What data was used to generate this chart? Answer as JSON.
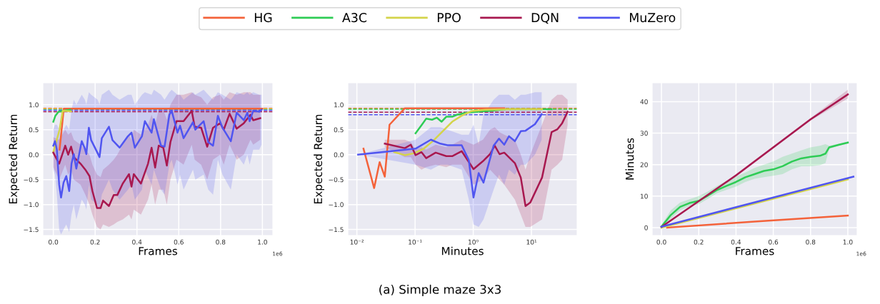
{
  "chart_data": [
    {
      "type": "line",
      "xlabel": "Frames",
      "ylabel": "Expected Return",
      "xlim": [
        -0.05,
        1.05
      ],
      "ylim": [
        -1.62,
        1.44
      ],
      "xticks": [
        {
          "value": 0,
          "label": "0.0"
        },
        0.2,
        0.4,
        0.6,
        0.8,
        {
          "value": 1,
          "label": "1.0"
        }
      ],
      "yticks": [
        {
          "value": -1.5,
          "label": "−1.5"
        },
        {
          "value": -1.0,
          "label": "−1.0"
        },
        {
          "value": -0.5,
          "label": "−0.5"
        },
        {
          "value": 0,
          "label": "0.0"
        },
        0.5,
        {
          "value": 1,
          "label": "1.0"
        }
      ],
      "grid": true,
      "legend": "top",
      "annotations": [
        "1e6"
      ],
      "ref_lines": [
        {
          "axis": "y",
          "value": 0.93,
          "color": "#f4623a",
          "line_style": "dashed"
        },
        {
          "axis": "y",
          "value": 0.91,
          "color": "#2ecc55",
          "line_style": "dashed"
        },
        {
          "axis": "y",
          "value": 0.92,
          "color": "#d4d44a",
          "line_style": "dashed"
        },
        {
          "axis": "y",
          "value": 0.86,
          "color": "#a8184f",
          "line_style": "dashed"
        },
        {
          "axis": "y",
          "value": 0.89,
          "color": "#5055f0",
          "line_style": "dashed"
        }
      ],
      "series": [
        {
          "name": "HG",
          "color": "#f4623a",
          "x": [
            0.03,
            0.05,
            1.0
          ],
          "values": [
            0.1,
            0.92,
            0.92
          ]
        },
        {
          "name": "A3C",
          "color": "#2ecc55",
          "x": [
            0,
            0.01,
            0.025,
            0.05,
            0.08
          ],
          "values": [
            0.66,
            0.78,
            0.86,
            0.88,
            0.9
          ]
        },
        {
          "name": "PPO",
          "color": "#d4d44a",
          "x": [
            0,
            0.03,
            0.045,
            0.085
          ],
          "values": [
            0.05,
            0.5,
            0.88,
            0.87
          ]
        },
        {
          "name": "DQN",
          "color": "#a8184f",
          "x": [
            0,
            0.028,
            0.057,
            0.071,
            0.085,
            0.098,
            0.13,
            0.153,
            0.173,
            0.187,
            0.209,
            0.226,
            0.238,
            0.266,
            0.289,
            0.306,
            0.332,
            0.362,
            0.374,
            0.385,
            0.419,
            0.453,
            0.47,
            0.487,
            0.504,
            0.526,
            0.543,
            0.56,
            0.589,
            0.623,
            0.662,
            0.676,
            0.707,
            0.736,
            0.764,
            0.798,
            0.815,
            0.843,
            0.877,
            0.911,
            0.943,
            0.956,
            0.99
          ],
          "values": [
            0.04,
            -0.18,
            0.18,
            0,
            0.16,
            -0.05,
            -0.18,
            -0.3,
            -0.43,
            -0.73,
            -1.07,
            -1.07,
            -0.92,
            -1.03,
            -0.81,
            -0.81,
            -0.58,
            -0.39,
            -0.64,
            -0.39,
            -0.58,
            -0.18,
            0.14,
            -0.26,
            0.18,
            0.14,
            -0.22,
            0.25,
            0.67,
            0.67,
            0.88,
            0.56,
            0.54,
            0.16,
            0.54,
            0.63,
            0.5,
            0.82,
            0.52,
            0.63,
            0.8,
            0.69,
            0.73
          ],
          "upper": [
            0.35,
            0.3,
            0.5,
            0.4,
            0.45,
            0.3,
            0.2,
            0.1,
            0,
            -0.2,
            -0.4,
            -0.45,
            -0.3,
            -0.2,
            -0.1,
            0,
            0.2,
            0.4,
            0.3,
            0.5,
            0.4,
            0.6,
            0.8,
            0.6,
            0.9,
            0.9,
            0.7,
            1.0,
            1.2,
            1.2,
            1.25,
            1.2,
            1.15,
            1.0,
            1.15,
            1.2,
            1.1,
            1.25,
            1.2,
            1.25,
            1.25,
            1.2,
            1.2
          ],
          "lower": [
            -0.25,
            -0.5,
            -0.2,
            -0.4,
            -0.3,
            -0.5,
            -0.6,
            -0.8,
            -1.0,
            -1.2,
            -1.45,
            -1.5,
            -1.4,
            -1.45,
            -1.4,
            -1.35,
            -1.3,
            -1.2,
            -1.3,
            -1.1,
            -1.2,
            -0.9,
            -0.6,
            -1.0,
            -0.7,
            -0.7,
            -1.0,
            -0.5,
            -0.1,
            -0.2,
            0.2,
            -0.1,
            -0.2,
            -0.5,
            -0.1,
            0,
            -0.2,
            0.2,
            -0.1,
            0,
            0.3,
            0.2,
            0.3
          ]
        },
        {
          "name": "MuZero",
          "color": "#5055f0",
          "x": [
            0,
            0.008,
            0.017,
            0.028,
            0.037,
            0.049,
            0.062,
            0.076,
            0.087,
            0.098,
            0.11,
            0.136,
            0.151,
            0.158,
            0.17,
            0.181,
            0.212,
            0.221,
            0.232,
            0.266,
            0.283,
            0.317,
            0.357,
            0.374,
            0.39,
            0.424,
            0.438,
            0.47,
            0.481,
            0.515,
            0.532,
            0.555,
            0.566,
            0.594,
            0.606,
            0.623,
            0.668,
            0.679,
            0.719,
            0.741,
            0.764,
            0.787,
            0.809,
            0.849,
            0.877,
            0.911,
            0.928,
            0.939,
            0.956,
            0.985,
            0.996
          ],
          "values": [
            0.18,
            0.27,
            0.1,
            -0.6,
            -0.86,
            -0.56,
            -0.43,
            -0.73,
            -0.18,
            0.01,
            -0.28,
            0.27,
            0.12,
            0.01,
            0.54,
            0.29,
            0.03,
            -0.05,
            0.33,
            0.56,
            0.29,
            0.14,
            0.37,
            0.44,
            0.14,
            0.37,
            0.67,
            0.44,
            0.71,
            0.18,
            0.16,
            0.8,
            0.88,
            0.44,
            0.58,
            0.33,
            0.65,
            0.5,
            0.67,
            0.25,
            0.18,
            0.78,
            0.54,
            0.27,
            0.84,
            0.69,
            0.84,
            0.67,
            0.88,
            0.86,
            0.9
          ],
          "upper": [
            0.5,
            0.6,
            0.6,
            0.5,
            0.4,
            0.5,
            0.6,
            0.5,
            0.9,
            1.1,
            1.0,
            1.2,
            1.1,
            1.0,
            1.25,
            1.2,
            1.1,
            1.0,
            1.2,
            1.3,
            1.2,
            1.1,
            1.2,
            1.2,
            1.0,
            1.2,
            1.25,
            1.2,
            1.3,
            1.2,
            1.1,
            1.25,
            1.3,
            1.2,
            1.2,
            1.1,
            1.25,
            1.2,
            1.3,
            1.2,
            1.1,
            1.25,
            1.2,
            1.1,
            1.25,
            1.2,
            1.25,
            1.2,
            1.25,
            1.2,
            1.2
          ],
          "lower": [
            -0.3,
            -0.4,
            -0.8,
            -1.5,
            -1.6,
            -1.5,
            -1.4,
            -1.55,
            -1.2,
            -1.0,
            -1.3,
            -0.9,
            -1.0,
            -1.1,
            -0.6,
            -0.9,
            -1.0,
            -1.1,
            -0.8,
            -0.5,
            -0.7,
            -0.9,
            -0.7,
            -0.6,
            -0.9,
            -0.7,
            -0.3,
            -0.6,
            -0.3,
            -0.7,
            -0.8,
            -0.2,
            -0.1,
            -0.6,
            -0.4,
            -0.7,
            -0.3,
            -0.5,
            -0.4,
            -0.7,
            -0.8,
            -0.1,
            -0.4,
            -0.7,
            0,
            -0.2,
            0,
            -0.2,
            0.1,
            0.1,
            0.2
          ]
        }
      ]
    },
    {
      "type": "line",
      "xlabel": "Minutes",
      "ylabel": "Expected Return",
      "log": "x",
      "xlim": [
        0.007,
        61
      ],
      "ylim": [
        -1.62,
        1.44
      ],
      "xticks": [
        {
          "value": 0.01,
          "label": "10⁻²"
        },
        {
          "value": 0.1,
          "label": "10⁻¹"
        },
        {
          "value": 1,
          "label": "10⁰"
        },
        {
          "value": 10,
          "label": "10¹"
        }
      ],
      "yticks": [
        {
          "value": -1.5,
          "label": "−1.5"
        },
        {
          "value": -1.0,
          "label": "−1.0"
        },
        {
          "value": -0.5,
          "label": "−0.5"
        },
        {
          "value": 0,
          "label": "0.0"
        },
        0.5,
        {
          "value": 1,
          "label": "1.0"
        }
      ],
      "grid": true,
      "annotations": [
        "(a) Simple maze 3x3"
      ],
      "ref_lines": [
        {
          "axis": "y",
          "value": 0.93,
          "color": "#f4623a",
          "line_style": "dashed"
        },
        {
          "axis": "y",
          "value": 0.92,
          "color": "#d4d44a",
          "line_style": "dashed"
        },
        {
          "axis": "y",
          "value": 0.91,
          "color": "#2ecc55",
          "line_style": "dashed"
        },
        {
          "axis": "y",
          "value": 0.85,
          "color": "#a8184f",
          "line_style": "dashed"
        },
        {
          "axis": "y",
          "value": 0.8,
          "color": "#5055f0",
          "line_style": "dashed"
        }
      ],
      "series": [
        {
          "color": "#f4623a",
          "x": [
            0.013,
            0.0198,
            0.0246,
            0.0302,
            0.0364,
            0.0668,
            3.41
          ],
          "values": [
            0.12,
            -0.67,
            -0.15,
            -0.44,
            0.6,
            0.93,
            0.93
          ]
        },
        {
          "color": "#2ecc55",
          "x": [
            0.102,
            0.129,
            0.155,
            0.196,
            0.237,
            0.285,
            0.344,
            0.435,
            0.525,
            0.762,
            1.22,
            1.94,
            3.74,
            12.6,
            22.2
          ],
          "values": [
            0.43,
            0.59,
            0.72,
            0.7,
            0.74,
            0.66,
            0.76,
            0.76,
            0.8,
            0.84,
            0.86,
            0.88,
            0.91,
            0.91,
            0.91
          ]
        },
        {
          "color": "#d4d44a",
          "x": [
            0.0438,
            0.0668,
            0.0973,
            0.141,
            0.206,
            0.299,
            0.435,
            0.632,
            0.919,
            1.61,
            4.95,
            15.2
          ],
          "values": [
            0.05,
            -0.01,
            0.03,
            0.12,
            0.28,
            0.47,
            0.66,
            0.78,
            0.87,
            0.9,
            0.91,
            0.91
          ]
        },
        {
          "color": "#a8184f",
          "x": [
            0.0302,
            0.0668,
            0.0845,
            0.102,
            0.129,
            0.155,
            0.226,
            0.344,
            0.435,
            0.632,
            1.01,
            1.47,
            1.94,
            2.34,
            2.83,
            3.41,
            5.19,
            6.56,
            7.91,
            9.55,
            15.2,
            22.2,
            28.0,
            33.7,
            41.9
          ],
          "values": [
            0.22,
            0.13,
            0.2,
            -0.01,
            0.05,
            -0.07,
            0.04,
            -0.03,
            -0.03,
            0.07,
            -0.29,
            -0.13,
            0.01,
            0.18,
            0.01,
            0.04,
            -0.17,
            -0.46,
            -1.03,
            -0.96,
            -0.46,
            0.45,
            0.51,
            0.63,
            0.86
          ],
          "upper": [
            0.3,
            0.3,
            0.25,
            0.1,
            0.15,
            0.1,
            0.2,
            0.15,
            0.2,
            0.3,
            0.2,
            0.3,
            0.5,
            0.55,
            0.45,
            0.4,
            0.3,
            0.0,
            -0.3,
            0.0,
            0.6,
            1.1,
            1.2,
            1.2,
            1.1
          ],
          "lower": [
            0.15,
            -0.05,
            -0.05,
            -0.2,
            -0.3,
            -0.25,
            -0.2,
            -0.25,
            -0.2,
            -0.2,
            -0.6,
            -0.5,
            -0.3,
            -0.4,
            -0.5,
            -0.6,
            -0.9,
            -1.2,
            -1.45,
            -1.45,
            -1.3,
            -0.3,
            -0.2,
            -0.1,
            0.6
          ]
        },
        {
          "color": "#5055f0",
          "x": [
            0.0105,
            0.102,
            0.187,
            0.272,
            0.361,
            0.632,
            0.838,
            1.01,
            1.24,
            1.5,
            2.24,
            2.77,
            3.41,
            4.11,
            5.19,
            6.56,
            7.91,
            11.5,
            15.0
          ],
          "values": [
            0,
            0.12,
            0.3,
            0.22,
            0.19,
            0.19,
            -0.11,
            -0.86,
            -0.37,
            -0.56,
            0.18,
            0.32,
            0.2,
            0.37,
            0.27,
            0.47,
            0.48,
            0.61,
            0.81
          ],
          "upper": [
            0,
            0.3,
            0.55,
            0.55,
            0.5,
            0.4,
            0.4,
            0.6,
            0.2,
            0.8,
            1.1,
            1.2,
            1.2,
            1.2,
            1.1,
            1.2,
            1.2,
            1.25,
            1.25
          ],
          "lower": [
            0,
            -0.2,
            -0.3,
            -0.2,
            -0.2,
            -0.3,
            -0.9,
            -1.4,
            -1.45,
            -1.3,
            -0.7,
            -0.4,
            -0.6,
            -0.3,
            -0.4,
            -0.2,
            -0.2,
            0,
            0.3
          ]
        }
      ]
    },
    {
      "type": "line",
      "xlabel": "Frames",
      "ylabel": "Minutes",
      "xlim": [
        -0.05,
        1.05
      ],
      "ylim": [
        -2.5,
        46
      ],
      "xticks": [
        {
          "value": 0,
          "label": "0.0"
        },
        0.2,
        0.4,
        0.6,
        0.8,
        {
          "value": 1,
          "label": "1.0"
        }
      ],
      "yticks": [
        0,
        10,
        20,
        30,
        40
      ],
      "grid": true,
      "annotations": [
        "1e6"
      ],
      "series": [
        {
          "color": "#f4623a",
          "x": [
            0.03,
            0.5,
            1.0
          ],
          "values": [
            0,
            1.9,
            3.8
          ]
        },
        {
          "color": "#2ecc55",
          "x": [
            0,
            0.05,
            0.1,
            0.15,
            0.2,
            0.25,
            0.3,
            0.35,
            0.4,
            0.45,
            0.5,
            0.55,
            0.6,
            0.65,
            0.7,
            0.75,
            0.8,
            0.85,
            0.88,
            0.9,
            0.95,
            1.0
          ],
          "values": [
            0.3,
            4,
            6.6,
            7.8,
            8.5,
            10.2,
            12.0,
            13.3,
            14.5,
            16,
            17,
            18,
            18.5,
            19.5,
            21,
            22,
            22.5,
            22.8,
            23.5,
            25.5,
            26.3,
            27
          ],
          "upper": [
            0.8,
            5.5,
            8,
            9,
            10,
            11.5,
            13.3,
            14.8,
            16.2,
            17.5,
            19,
            20,
            21,
            22.5,
            23.5,
            24.5,
            25.5,
            26,
            26.5,
            26,
            26.6,
            27.3
          ],
          "lower": [
            0,
            2.8,
            5.5,
            6.8,
            7.5,
            9.2,
            11,
            12,
            13,
            14.5,
            15.5,
            16,
            16.5,
            17,
            18.5,
            19.5,
            19.5,
            19.8,
            20.5,
            25,
            26,
            26.7
          ]
        },
        {
          "color": "#d4d44a",
          "x": [
            0,
            1.0
          ],
          "values": [
            0,
            15.3
          ]
        },
        {
          "color": "#a8184f",
          "x": [
            0,
            0.4,
            0.8,
            1.0
          ],
          "values": [
            0.2,
            16.6,
            34.4,
            42.3
          ],
          "upper": [
            0.3,
            17,
            34.8,
            43.8
          ],
          "lower": [
            0.1,
            16.2,
            34,
            41
          ]
        },
        {
          "color": "#5055f0",
          "x": [
            0,
            1.03
          ],
          "values": [
            0.3,
            16.2
          ]
        }
      ]
    }
  ]
}
